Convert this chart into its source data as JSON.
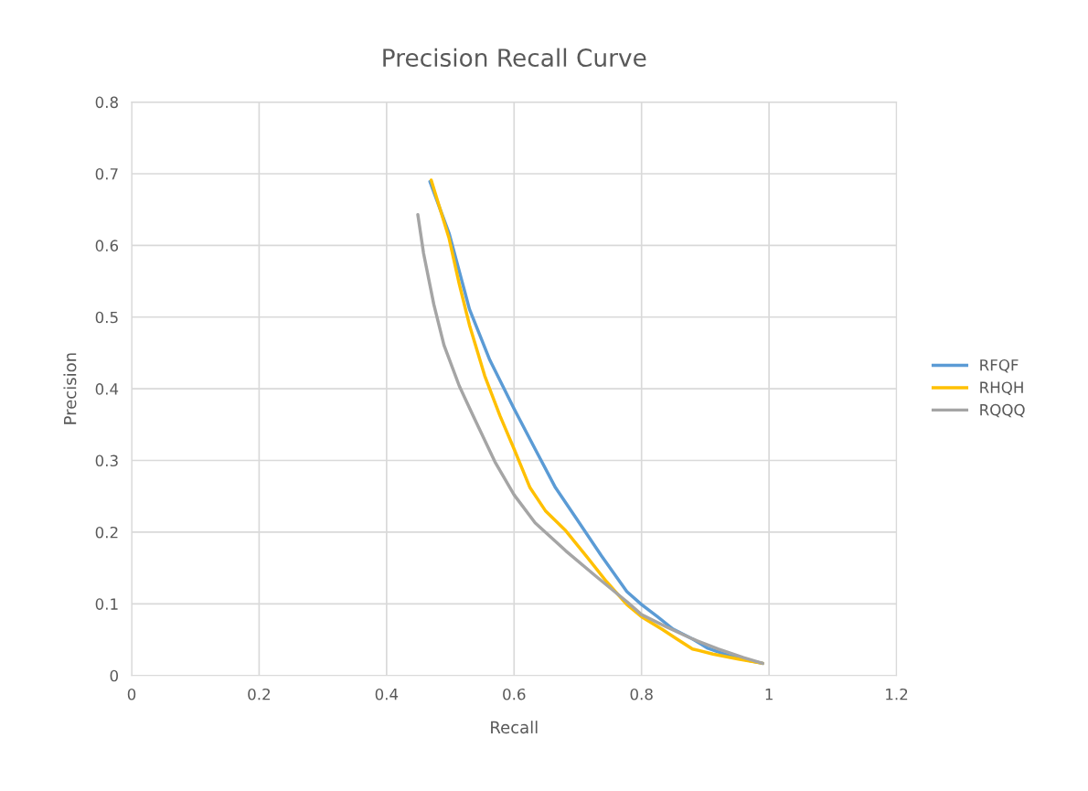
{
  "chart_data": {
    "type": "line",
    "title": "Precision Recall Curve",
    "xlabel": "Recall",
    "ylabel": "Precision",
    "xlim": [
      0,
      1.2
    ],
    "xticks": [
      0,
      0.2,
      0.4,
      0.6,
      0.8,
      1,
      1.2
    ],
    "ylim": [
      0,
      0.8
    ],
    "yticks": [
      0,
      0.1,
      0.2,
      0.3,
      0.4,
      0.5,
      0.6,
      0.7,
      0.8
    ],
    "grid": true,
    "legend": "right",
    "marker": "none",
    "line_style": "solid",
    "series": [
      {
        "name": "RFQF",
        "color": "#5b9bd5",
        "x": [
          0.468,
          0.498,
          0.53,
          0.562,
          0.6,
          0.633,
          0.665,
          0.697,
          0.737,
          0.777,
          0.8,
          0.825,
          0.849,
          0.88,
          0.904,
          0.936,
          0.968,
          0.99
        ],
        "values": [
          0.689,
          0.617,
          0.511,
          0.44,
          0.372,
          0.316,
          0.262,
          0.22,
          0.167,
          0.117,
          0.099,
          0.082,
          0.065,
          0.051,
          0.038,
          0.028,
          0.021,
          0.017
        ]
      },
      {
        "name": "RHQH",
        "color": "#ffc000",
        "x": [
          0.47,
          0.498,
          0.514,
          0.53,
          0.554,
          0.578,
          0.6,
          0.625,
          0.649,
          0.681,
          0.713,
          0.745,
          0.777,
          0.8,
          0.833,
          0.857,
          0.88,
          0.912,
          0.952,
          0.99
        ],
        "values": [
          0.691,
          0.61,
          0.546,
          0.489,
          0.418,
          0.362,
          0.316,
          0.262,
          0.23,
          0.202,
          0.167,
          0.131,
          0.099,
          0.082,
          0.064,
          0.05,
          0.037,
          0.03,
          0.023,
          0.017
        ]
      },
      {
        "name": "RQQQ",
        "color": "#a5a5a5",
        "x": [
          0.449,
          0.458,
          0.474,
          0.49,
          0.514,
          0.538,
          0.57,
          0.6,
          0.633,
          0.681,
          0.729,
          0.777,
          0.8,
          0.841,
          0.88,
          0.92,
          0.96,
          0.99
        ],
        "values": [
          0.643,
          0.589,
          0.518,
          0.461,
          0.404,
          0.358,
          0.298,
          0.252,
          0.213,
          0.174,
          0.138,
          0.103,
          0.085,
          0.067,
          0.051,
          0.037,
          0.025,
          0.017
        ]
      }
    ]
  }
}
